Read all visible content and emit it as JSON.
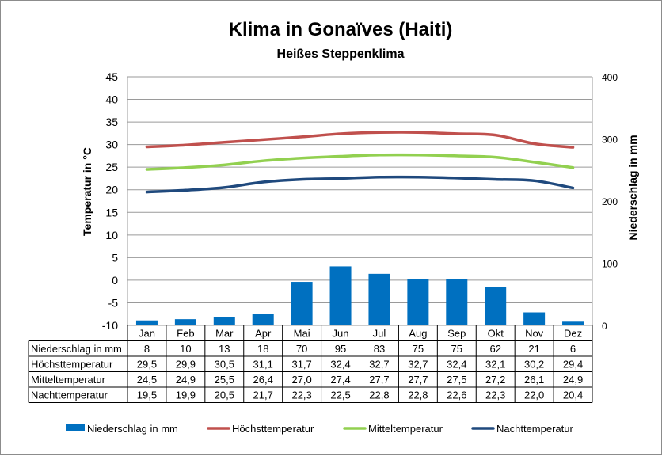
{
  "chart_data": {
    "type": "bar+line",
    "title": "Klima in Gonaïves (Haiti)",
    "subtitle": "Heißes Steppenklima",
    "categories": [
      "Jan",
      "Feb",
      "Mar",
      "Apr",
      "Mai",
      "Jun",
      "Jul",
      "Aug",
      "Sep",
      "Okt",
      "Nov",
      "Dez"
    ],
    "ylabel_left": "Temperatur in °C",
    "ylabel_right": "Niederschlag in mm",
    "ylim_left": [
      -10,
      45
    ],
    "yticks_left": [
      -10,
      -5,
      0,
      5,
      10,
      15,
      20,
      25,
      30,
      35,
      40,
      45
    ],
    "ylim_right": [
      0,
      400
    ],
    "yticks_right": [
      0,
      100,
      200,
      300,
      400
    ],
    "grid": true,
    "legend_position": "bottom",
    "series": [
      {
        "name": "Niederschlag in mm",
        "type": "bar",
        "axis": "right",
        "color": "#0070C0",
        "values": [
          8,
          10,
          13,
          18,
          70,
          95,
          83,
          75,
          75,
          62,
          21,
          6
        ],
        "display": [
          "8",
          "10",
          "13",
          "18",
          "70",
          "95",
          "83",
          "75",
          "75",
          "62",
          "21",
          "6"
        ]
      },
      {
        "name": "Höchsttemperatur",
        "type": "line",
        "axis": "left",
        "color": "#C0504D",
        "values": [
          29.5,
          29.9,
          30.5,
          31.1,
          31.7,
          32.4,
          32.7,
          32.7,
          32.4,
          32.1,
          30.2,
          29.4
        ],
        "display": [
          "29,5",
          "29,9",
          "30,5",
          "31,1",
          "31,7",
          "32,4",
          "32,7",
          "32,7",
          "32,4",
          "32,1",
          "30,2",
          "29,4"
        ]
      },
      {
        "name": "Mitteltemperatur",
        "type": "line",
        "axis": "left",
        "color": "#92D050",
        "values": [
          24.5,
          24.9,
          25.5,
          26.4,
          27.0,
          27.4,
          27.7,
          27.7,
          27.5,
          27.2,
          26.1,
          24.9
        ],
        "display": [
          "24,5",
          "24,9",
          "25,5",
          "26,4",
          "27,0",
          "27,4",
          "27,7",
          "27,7",
          "27,5",
          "27,2",
          "26,1",
          "24,9"
        ]
      },
      {
        "name": "Nachttemperatur",
        "type": "line",
        "axis": "left",
        "color": "#1F497D",
        "values": [
          19.5,
          19.9,
          20.5,
          21.7,
          22.3,
          22.5,
          22.8,
          22.8,
          22.6,
          22.3,
          22.0,
          20.4
        ],
        "display": [
          "19,5",
          "19,9",
          "20,5",
          "21,7",
          "22,3",
          "22,5",
          "22,8",
          "22,8",
          "22,6",
          "22,3",
          "22,0",
          "20,4"
        ]
      }
    ]
  }
}
